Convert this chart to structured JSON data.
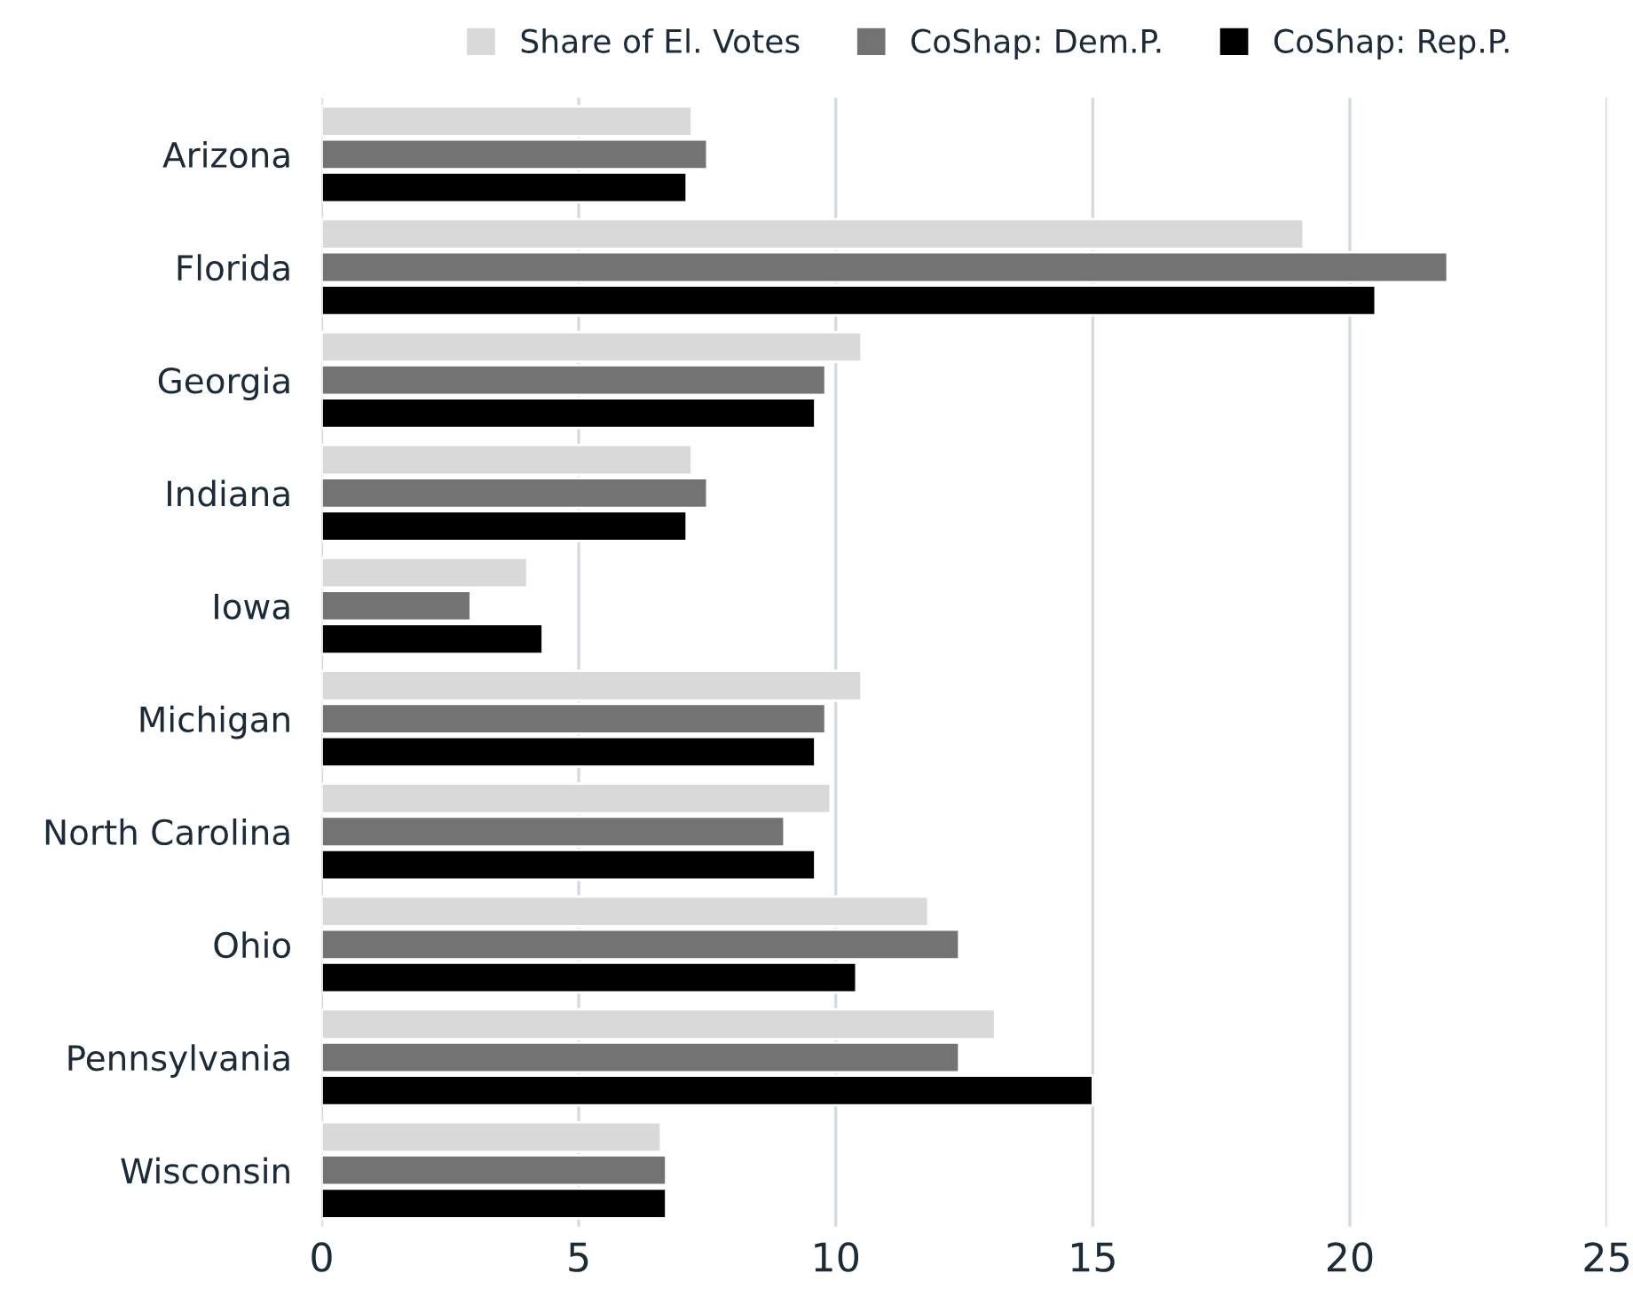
{
  "chart_data": {
    "type": "bar",
    "orientation": "horizontal",
    "categories": [
      "Arizona",
      "Florida",
      "Georgia",
      "Indiana",
      "Iowa",
      "Michigan",
      "North Carolina",
      "Ohio",
      "Pennsylvania",
      "Wisconsin"
    ],
    "series": [
      {
        "name": "Share of El. Votes",
        "color": "#d9d9d9",
        "values": [
          7.2,
          19.1,
          10.5,
          7.2,
          4.0,
          10.5,
          9.9,
          11.8,
          13.1,
          6.6
        ]
      },
      {
        "name": "CoShap: Dem.P.",
        "color": "#737373",
        "values": [
          7.5,
          21.9,
          9.8,
          7.5,
          2.9,
          9.8,
          9.0,
          12.4,
          12.4,
          6.7
        ]
      },
      {
        "name": "CoShap: Rep.P.",
        "color": "#000000",
        "values": [
          7.1,
          20.5,
          9.6,
          7.1,
          4.3,
          9.6,
          9.6,
          10.4,
          15.0,
          6.7
        ]
      }
    ],
    "xlim": [
      0,
      25
    ],
    "xticks": [
      0,
      5,
      10,
      15,
      20,
      25
    ],
    "grid": "x",
    "legend": "top"
  }
}
